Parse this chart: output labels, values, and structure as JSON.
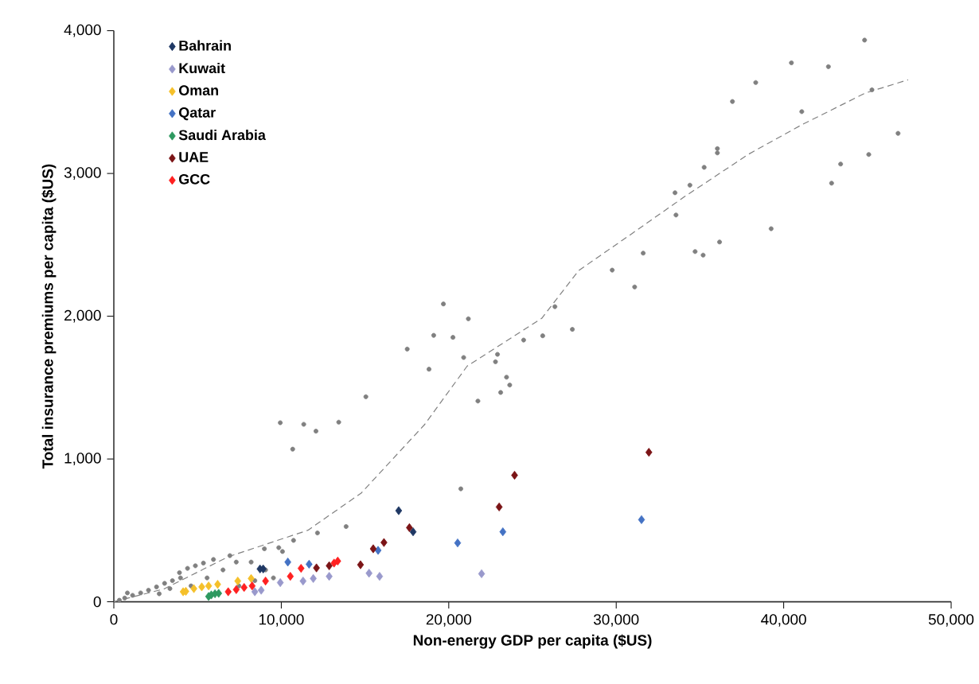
{
  "chart_data": {
    "type": "scatter",
    "xlabel": "Non-energy GDP per capita ($US)",
    "ylabel": "Total insurance premiums per capita ($US)",
    "xlim": [
      0,
      50000
    ],
    "ylim": [
      0,
      4000
    ],
    "xticks": [
      0,
      {
        "value": 10000,
        "label": "10,000"
      },
      {
        "value": 20000,
        "label": "20,000"
      },
      {
        "value": 30000,
        "label": "30,000"
      },
      {
        "value": 40000,
        "label": "40,000"
      },
      {
        "value": 50000,
        "label": "50,000"
      }
    ],
    "yticks": [
      0,
      {
        "value": 1000,
        "label": "1,000"
      },
      {
        "value": 2000,
        "label": "2,000"
      },
      {
        "value": 3000,
        "label": "3,000"
      },
      {
        "value": 4000,
        "label": "4,000"
      }
    ],
    "grid": false,
    "legend": "top left",
    "series": [
      {
        "color": "#808080",
        "marker": "circle",
        "x": [
          44830,
          40460,
          42670,
          38330,
          45270,
          36940,
          41080,
          46830,
          36040,
          36040,
          45080,
          43400,
          35250,
          42860,
          34400,
          33510,
          33570,
          39250,
          31610,
          34710,
          35190,
          36170,
          29760,
          31100,
          26340,
          25610,
          27380,
          19680,
          19100,
          20250,
          21170,
          17520,
          18820,
          20890,
          24470,
          22910,
          22790,
          23450,
          23640,
          23100,
          21740,
          15050,
          9940,
          10680,
          11340,
          12070,
          13430,
          20720,
          13870,
          12160,
          10730,
          10070,
          9850,
          8990,
          8200,
          7310,
          6930,
          5950,
          5350,
          4870,
          4400,
          3920,
          3980,
          3500,
          3030,
          2550,
          2070,
          1600,
          1120,
          650,
          330,
          810,
          3350,
          5570,
          6520,
          9060,
          9530,
          8420,
          7470,
          4610,
          2710
        ],
        "values": [
          3934,
          3775,
          3748,
          3637,
          3586,
          3504,
          3433,
          3281,
          3174,
          3144,
          3133,
          3066,
          3043,
          2932,
          2918,
          2865,
          2709,
          2613,
          2442,
          2453,
          2428,
          2520,
          2323,
          2205,
          2067,
          1863,
          1908,
          2086,
          1866,
          1852,
          1982,
          1770,
          1629,
          1711,
          1833,
          1733,
          1681,
          1573,
          1518,
          1466,
          1406,
          1436,
          1254,
          1069,
          1243,
          1195,
          1258,
          791,
          527,
          482,
          430,
          352,
          379,
          371,
          278,
          278,
          323,
          296,
          271,
          252,
          234,
          204,
          167,
          148,
          129,
          104,
          81,
          62,
          45,
          26,
          11,
          62,
          92,
          167,
          223,
          223,
          167,
          148,
          111,
          111,
          56
        ]
      },
      {
        "type": "line",
        "color": "#808080",
        "line_style": "dashed",
        "marker": "none",
        "x": [
          0,
          3000,
          6830,
          11590,
          14770,
          18570,
          21100,
          25550,
          27760,
          30940,
          34110,
          37920,
          41080,
          44890,
          47430
        ],
        "values": [
          0,
          90,
          315,
          501,
          761,
          1243,
          1651,
          1985,
          2320,
          2579,
          2840,
          3136,
          3341,
          3564,
          3656
        ]
      },
      {
        "name": "Bahrain",
        "color": "#1f3864",
        "marker": "diamond",
        "x": [
          17010,
          17870,
          8730,
          8920
        ],
        "values": [
          638,
          490,
          230,
          230
        ]
      },
      {
        "name": "Kuwait",
        "color": "#9999cc",
        "marker": "diamond",
        "x": [
          21960,
          15870,
          15240,
          12860,
          11910,
          11300,
          9940,
          8800,
          8420
        ],
        "values": [
          196,
          178,
          200,
          178,
          163,
          145,
          134,
          81,
          70
        ]
      },
      {
        "name": "Oman",
        "color": "#f5c02a",
        "marker": "diamond",
        "x": [
          4140,
          4300,
          4780,
          5250,
          5660,
          6200,
          7400,
          8200
        ],
        "values": [
          70,
          73,
          92,
          104,
          111,
          122,
          145,
          163
        ]
      },
      {
        "name": "Qatar",
        "color": "#4472c4",
        "marker": "diamond",
        "x": [
          23230,
          20530,
          15780,
          11660,
          10390,
          31510
        ],
        "values": [
          490,
          412,
          360,
          263,
          278,
          575
        ]
      },
      {
        "name": "Saudi Arabia",
        "color": "#2e9960",
        "marker": "diamond",
        "x": [
          5820,
          6040,
          6260,
          5660
        ],
        "values": [
          48,
          56,
          59,
          37
        ]
      },
      {
        "name": "UAE",
        "color": "#7b1416",
        "marker": "diamond",
        "x": [
          23930,
          23010,
          16130,
          15490,
          17650,
          14730,
          12860,
          12100,
          31950
        ],
        "values": [
          886,
          664,
          415,
          371,
          519,
          259,
          252,
          237,
          1047
        ]
      },
      {
        "name": "GCC",
        "color": "#ff2020",
        "marker": "diamond",
        "x": [
          13370,
          13150,
          11180,
          10540,
          9060,
          8260,
          7780,
          7310,
          6830
        ],
        "values": [
          285,
          271,
          234,
          178,
          145,
          111,
          100,
          85,
          70
        ]
      }
    ]
  }
}
